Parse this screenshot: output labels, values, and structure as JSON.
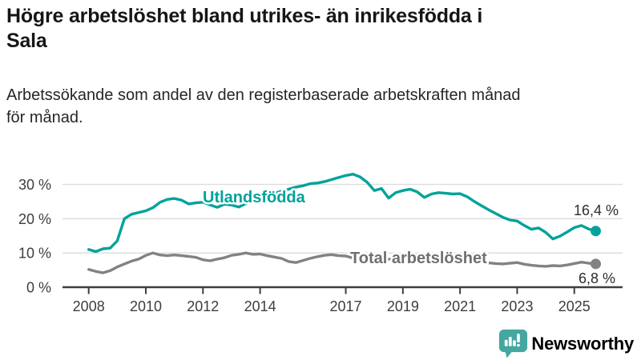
{
  "header": {
    "title_lines": [
      "Högre arbetslöshet bland utrikes- än inrikesfödda i",
      "Sala"
    ],
    "subtitle_lines": [
      "Arbetssökande som andel av den registerbaserade arbetskraften månad",
      "för månad."
    ]
  },
  "chart_data": {
    "type": "line",
    "unit": "%",
    "x_start": 2008,
    "x_step_years": 0.25,
    "x_tick_labels": [
      "2008",
      "2010",
      "2012",
      "2014",
      "2017",
      "2019",
      "2021",
      "2023",
      "2025"
    ],
    "y_ticks": [
      {
        "value": 0,
        "label": "0 %"
      },
      {
        "value": 10,
        "label": "10 %"
      },
      {
        "value": 20,
        "label": "20 %"
      },
      {
        "value": 30,
        "label": "30 %"
      }
    ],
    "ylim": [
      0,
      34
    ],
    "grid": "horizontal",
    "legend_position": "inline-labels",
    "series": [
      {
        "name": "Utlandsfödda",
        "color": "#00a29b",
        "label_color": "#00a29b",
        "end_label": "16,4 %",
        "end_value": 16.4,
        "values": [
          11.0,
          10.4,
          11.2,
          11.4,
          13.5,
          20.0,
          21.3,
          21.8,
          22.3,
          23.2,
          24.8,
          25.6,
          25.9,
          25.4,
          24.3,
          24.6,
          24.8,
          24.0,
          23.3,
          24.2,
          24.0,
          23.4,
          24.4,
          25.2,
          26.0,
          26.8,
          27.4,
          28.0,
          28.6,
          29.2,
          29.6,
          30.2,
          30.4,
          30.8,
          31.4,
          32.0,
          32.6,
          33.0,
          32.2,
          30.6,
          28.2,
          28.8,
          26.0,
          27.6,
          28.2,
          28.6,
          27.8,
          26.2,
          27.2,
          27.6,
          27.4,
          27.2,
          27.3,
          26.4,
          25.0,
          23.8,
          22.6,
          21.5,
          20.4,
          19.6,
          19.3,
          18.0,
          16.9,
          17.3,
          16.0,
          14.1,
          14.9,
          16.1,
          17.4,
          18.0,
          17.0,
          16.4
        ]
      },
      {
        "name": "Total arbetslöshet",
        "color": "#828286",
        "label_color": "#6f6f73",
        "end_label": "6,8 %",
        "end_value": 6.8,
        "values": [
          5.2,
          4.6,
          4.2,
          4.8,
          5.9,
          6.8,
          7.6,
          8.2,
          9.3,
          10.0,
          9.4,
          9.2,
          9.4,
          9.2,
          9.0,
          8.7,
          8.0,
          7.7,
          8.2,
          8.6,
          9.3,
          9.6,
          10.0,
          9.6,
          9.7,
          9.2,
          8.8,
          8.4,
          7.5,
          7.2,
          7.8,
          8.4,
          8.9,
          9.3,
          9.5,
          9.2,
          9.1,
          8.5,
          8.7,
          8.9,
          8.9,
          8.4,
          8.2,
          8.1,
          8.0,
          7.9,
          8.1,
          8.3,
          8.8,
          9.4,
          9.2,
          8.9,
          8.6,
          8.2,
          7.8,
          7.4,
          7.1,
          6.9,
          6.8,
          7.0,
          7.2,
          6.7,
          6.4,
          6.2,
          6.1,
          6.3,
          6.2,
          6.5,
          6.9,
          7.3,
          7.0,
          6.8
        ]
      }
    ]
  },
  "branding": {
    "name": "Newsworthy",
    "color": "#399f9a",
    "icon_color": "#45a7a0"
  }
}
